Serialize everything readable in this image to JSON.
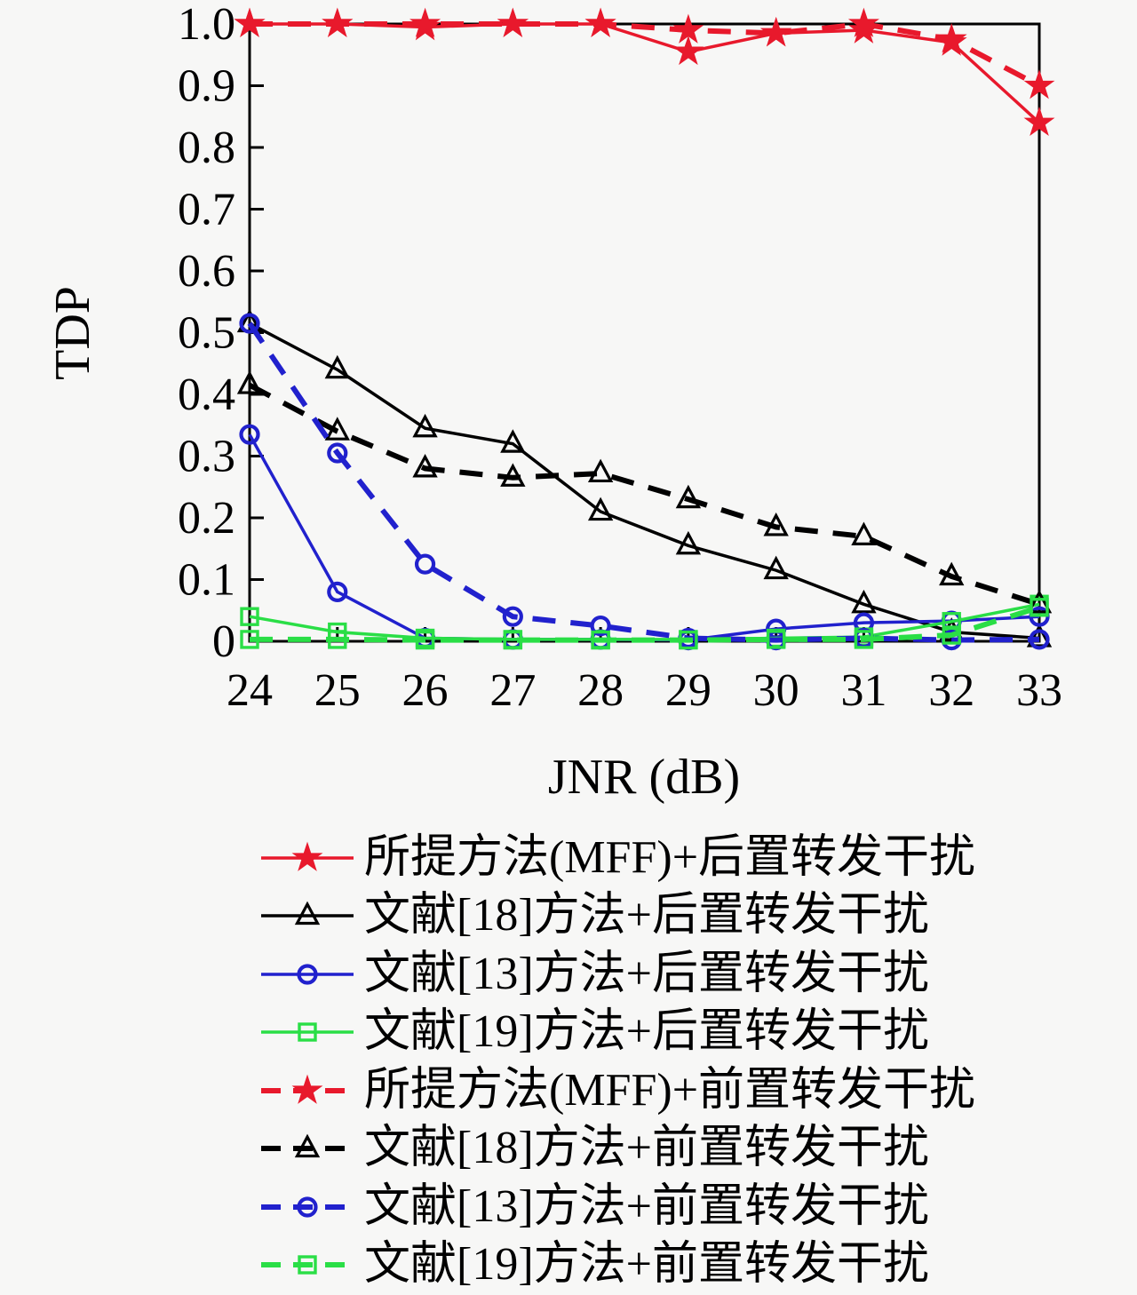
{
  "figure": {
    "background": "#f7f7f6",
    "text_color": "#000000"
  },
  "chart_data": {
    "type": "line",
    "title": "",
    "xlabel": "JNR (dB)",
    "ylabel": "TDP",
    "x": [
      24,
      25,
      26,
      27,
      28,
      29,
      30,
      31,
      32,
      33
    ],
    "xlim": [
      24,
      33
    ],
    "ylim": [
      0,
      1.0
    ],
    "x_tick_labels": [
      "24",
      "25",
      "26",
      "27",
      "28",
      "29",
      "30",
      "31",
      "32",
      "33"
    ],
    "y_tick_labels": [
      "1.0",
      "0.9",
      "0.8",
      "0.7",
      "0.6",
      "0.5",
      "0.4",
      "0.3",
      "0.2",
      "0.1",
      "0"
    ],
    "y_tick_values": [
      1.0,
      0.9,
      0.8,
      0.7,
      0.6,
      0.5,
      0.4,
      0.3,
      0.2,
      0.1,
      0
    ],
    "grid": false,
    "legend_position": "below-left",
    "series": [
      {
        "name": "所提方法(MFF)+后置转发干扰",
        "color": "#e8192c",
        "line": "solid",
        "marker": "star",
        "values": [
          1.0,
          1.0,
          0.995,
          1.0,
          1.0,
          0.955,
          0.985,
          0.99,
          0.97,
          0.84
        ]
      },
      {
        "name": "文献[18]方法+后置转发干扰",
        "color": "#000000",
        "line": "solid",
        "marker": "triangle",
        "values": [
          0.515,
          0.44,
          0.345,
          0.32,
          0.21,
          0.155,
          0.115,
          0.06,
          0.015,
          0.005
        ]
      },
      {
        "name": "文献[13]方法+后置转发干扰",
        "color": "#2121cd",
        "line": "solid",
        "marker": "circle",
        "values": [
          0.335,
          0.08,
          0.005,
          0.003,
          0.003,
          0.002,
          0.02,
          0.03,
          0.033,
          0.04
        ]
      },
      {
        "name": "文献[19]方法+后置转发干扰",
        "color": "#2ade46",
        "line": "solid",
        "marker": "square",
        "values": [
          0.04,
          0.015,
          0.005,
          0.003,
          0.003,
          0.003,
          0.005,
          0.007,
          0.032,
          0.06
        ]
      },
      {
        "name": "所提方法(MFF)+前置转发干扰",
        "color": "#e8192c",
        "line": "dashed",
        "marker": "star",
        "values": [
          1.0,
          1.0,
          1.0,
          1.0,
          1.0,
          0.99,
          0.985,
          1.0,
          0.975,
          0.9
        ]
      },
      {
        "name": "文献[18]方法+前置转发干扰",
        "color": "#000000",
        "line": "dashed",
        "marker": "triangle",
        "values": [
          0.415,
          0.34,
          0.28,
          0.265,
          0.272,
          0.23,
          0.185,
          0.17,
          0.105,
          0.06
        ]
      },
      {
        "name": "文献[13]方法+前置转发干扰",
        "color": "#2121cd",
        "line": "dashed",
        "marker": "circle",
        "values": [
          0.515,
          0.305,
          0.125,
          0.04,
          0.025,
          0.005,
          0.002,
          0.005,
          0.002,
          0.003
        ]
      },
      {
        "name": "文献[19]方法+前置转发干扰",
        "color": "#2ade46",
        "line": "dashed",
        "marker": "square",
        "values": [
          0.003,
          0.003,
          0.002,
          0.002,
          0.002,
          0.002,
          0.003,
          0.003,
          0.01,
          0.055
        ]
      }
    ]
  }
}
